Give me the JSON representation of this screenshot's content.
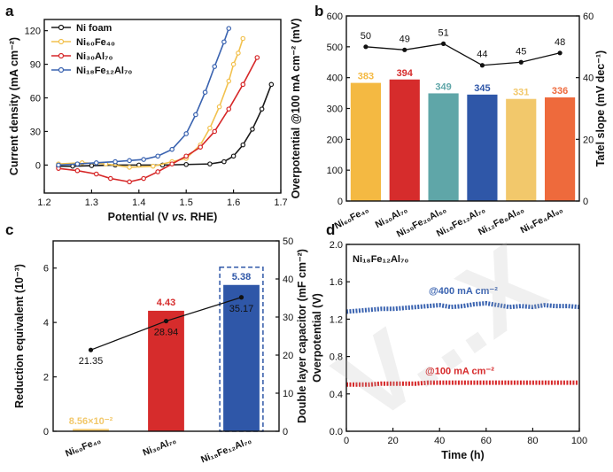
{
  "chart_data": [
    {
      "id": "a",
      "panel_label": "a",
      "type": "line",
      "title": "",
      "xlabel": "Potential (V vs. RHE)",
      "xlabel_parts": [
        "Potential (V ",
        "vs.",
        " RHE)"
      ],
      "ylabel": "Current density (mA cm⁻²)",
      "xlim": [
        1.2,
        1.7
      ],
      "ylim": [
        -25,
        130
      ],
      "xticks": [
        "1.2",
        "1.3",
        "1.4",
        "1.5",
        "1.6",
        "1.7"
      ],
      "yticks": [
        "0",
        "30",
        "60",
        "90",
        "120"
      ],
      "legend_position": "top-left",
      "series": [
        {
          "name": "Ni foam",
          "legend_label": "Ni foam",
          "color": "#1a1a1a",
          "x": [
            1.23,
            1.26,
            1.3,
            1.35,
            1.4,
            1.45,
            1.5,
            1.55,
            1.58,
            1.6,
            1.62,
            1.64,
            1.66,
            1.68
          ],
          "y": [
            -1,
            -1,
            -0.5,
            0,
            0,
            0,
            0.5,
            1,
            3,
            8,
            18,
            32,
            50,
            72
          ]
        },
        {
          "name": "Ni60Fe40",
          "legend_label": "Ni₆₀Fe₄₀",
          "color": "#f2c14e",
          "x": [
            1.23,
            1.28,
            1.33,
            1.38,
            1.43,
            1.47,
            1.5,
            1.53,
            1.55,
            1.57,
            1.59,
            1.6,
            1.61,
            1.62
          ],
          "y": [
            1,
            2,
            1,
            -2,
            -1,
            3,
            6,
            18,
            33,
            52,
            75,
            90,
            100,
            113
          ]
        },
        {
          "name": "Ni30Al70",
          "legend_label": "Ni₃₀Al₇₀",
          "color": "#d62728",
          "x": [
            1.23,
            1.27,
            1.31,
            1.34,
            1.38,
            1.41,
            1.44,
            1.47,
            1.5,
            1.53,
            1.56,
            1.59,
            1.62,
            1.65
          ],
          "y": [
            -3,
            -5,
            -8,
            -12,
            -15,
            -12,
            -6,
            1,
            8,
            16,
            30,
            50,
            72,
            96
          ]
        },
        {
          "name": "Ni18Fe12Al70",
          "legend_label": "Ni₁₈Fe₁₂Al₇₀",
          "color": "#3a63b0",
          "x": [
            1.23,
            1.27,
            1.31,
            1.35,
            1.38,
            1.41,
            1.44,
            1.47,
            1.5,
            1.52,
            1.54,
            1.56,
            1.58,
            1.59
          ],
          "y": [
            0,
            1,
            2,
            3,
            4,
            5,
            8,
            14,
            28,
            45,
            65,
            88,
            110,
            122
          ]
        }
      ]
    },
    {
      "id": "b",
      "panel_label": "b",
      "type": "bar",
      "title": "",
      "ylabel": "Overpotential @100 mA cm⁻² (mV)",
      "y2label": "Tafel slope (mV dec⁻¹)",
      "ylim": [
        0,
        600
      ],
      "y2lim": [
        0,
        60
      ],
      "yticks": [
        "0",
        "100",
        "200",
        "300",
        "400",
        "500",
        "600"
      ],
      "y2ticks": [
        "0",
        "20",
        "40",
        "60"
      ],
      "categories": [
        "Ni60Fe40",
        "Ni30Al70",
        "Ni30Fe20Al50",
        "Ni18Fe12Al70",
        "Ni12Fe8Al80",
        "Ni6Fe4Al90"
      ],
      "category_labels": [
        "Ni₆₀Fe₄₀",
        "Ni₃₀Al₇₀",
        "Ni₃₀Fe₂₀Al₅₀",
        "Ni₁₈Fe₁₂Al₇₀",
        "Ni₁₂Fe₈Al₈₀",
        "Ni₆Fe₄Al₉₀"
      ],
      "values": [
        383,
        394,
        349,
        345,
        331,
        336
      ],
      "value_labels": [
        "383",
        "394",
        "349",
        "345",
        "331",
        "336"
      ],
      "colors": [
        "#f4b942",
        "#d62c2c",
        "#5fa6a8",
        "#2f57a8",
        "#f2c86b",
        "#ee6a3c"
      ],
      "tafel": [
        50,
        49,
        51,
        44,
        45,
        48
      ],
      "tafel_labels": [
        "50",
        "49",
        "51",
        "44",
        "45",
        "48"
      ]
    },
    {
      "id": "c",
      "panel_label": "c",
      "type": "bar",
      "title": "",
      "ylabel": "Reduction equivalent (10⁻³)",
      "y2label": "Double layer capacitor (mF cm⁻²)",
      "ylim": [
        0,
        7
      ],
      "y2lim": [
        0,
        50
      ],
      "yticks": [
        "0",
        "2",
        "4",
        "6"
      ],
      "y2ticks": [
        "0",
        "10",
        "20",
        "30",
        "40",
        "50"
      ],
      "categories": [
        "Ni60Fe40",
        "Ni30Al70",
        "Ni18Fe12Al70"
      ],
      "category_labels": [
        "Ni₆₀Fe₄₀",
        "Ni₃₀Al₇₀",
        "Ni₁₈Fe₁₂Al₇₀"
      ],
      "values": [
        0.0856,
        4.43,
        5.38
      ],
      "value_labels": [
        "8.56×10⁻²",
        "4.43",
        "5.38"
      ],
      "colors": [
        "#f2c86b",
        "#d62c2c",
        "#2f57a8"
      ],
      "capacitance": [
        21.35,
        28.94,
        35.17
      ],
      "capacitance_labels": [
        "21.35",
        "28.94",
        "35.17"
      ]
    },
    {
      "id": "d",
      "panel_label": "d",
      "type": "line",
      "title": "",
      "inset_label": "Ni₁₈Fe₁₂Al₇₀",
      "xlabel": "Time (h)",
      "ylabel": "Overpotential (V)",
      "xlim": [
        0,
        100
      ],
      "ylim": [
        0,
        2.0
      ],
      "xticks": [
        "0",
        "20",
        "40",
        "60",
        "80",
        "100"
      ],
      "yticks": [
        "0.0",
        "0.4",
        "0.8",
        "1.2",
        "1.6",
        "2.0"
      ],
      "series": [
        {
          "name": "@400 mA cm⁻²",
          "color": "#3a63b0",
          "x": [
            0,
            5,
            10,
            15,
            20,
            25,
            30,
            35,
            40,
            45,
            50,
            55,
            60,
            65,
            70,
            75,
            80,
            85,
            90,
            95,
            100
          ],
          "y": [
            1.28,
            1.29,
            1.3,
            1.31,
            1.31,
            1.32,
            1.33,
            1.34,
            1.35,
            1.33,
            1.34,
            1.36,
            1.37,
            1.35,
            1.33,
            1.34,
            1.33,
            1.35,
            1.34,
            1.34,
            1.33
          ]
        },
        {
          "name": "@100 mA cm⁻²",
          "color": "#d62728",
          "x": [
            0,
            5,
            10,
            15,
            20,
            25,
            30,
            35,
            40,
            45,
            50,
            55,
            60,
            65,
            70,
            75,
            80,
            85,
            90,
            95,
            100
          ],
          "y": [
            0.5,
            0.5,
            0.5,
            0.51,
            0.51,
            0.51,
            0.51,
            0.52,
            0.52,
            0.52,
            0.52,
            0.52,
            0.52,
            0.52,
            0.52,
            0.52,
            0.52,
            0.52,
            0.52,
            0.52,
            0.52
          ]
        }
      ]
    }
  ],
  "watermark": "V...X"
}
